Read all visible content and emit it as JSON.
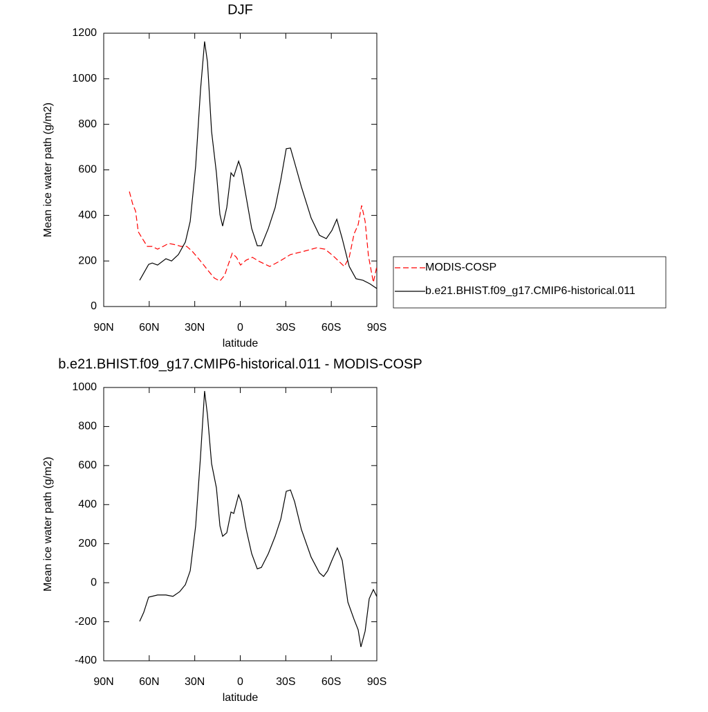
{
  "chart_data": [
    {
      "type": "line",
      "title": "DJF",
      "xlabel": "latitude",
      "ylabel": "Mean ice water path (g/m2)",
      "xlim": [
        90,
        -90
      ],
      "xticks": [
        {
          "value": 90,
          "label": "90N"
        },
        {
          "value": 60,
          "label": "60N"
        },
        {
          "value": 30,
          "label": "30N"
        },
        0,
        {
          "value": -30,
          "label": "30S"
        },
        {
          "value": -60,
          "label": "60S"
        },
        {
          "value": -90,
          "label": "90S"
        }
      ],
      "ylim": [
        0,
        1200
      ],
      "yticks": [
        0,
        200,
        400,
        600,
        800,
        1000,
        1200
      ],
      "legend": "outside-right",
      "series": [
        {
          "name": "MODIS-COSP",
          "color": "#ff0000",
          "dashed": true,
          "x": [
            73.1,
            70.9,
            69,
            67.2,
            64.5,
            61.3,
            58.1,
            54.5,
            50.8,
            47.2,
            42.6,
            39,
            35.3,
            31.7,
            26.2,
            21.6,
            17.1,
            13.4,
            10.3,
            8,
            5.3,
            2.5,
            -0.2,
            -3.9,
            -8,
            -12.5,
            -19.4,
            -26.2,
            -33.1,
            -42.2,
            -50.4,
            -55.8,
            -61.3,
            -68.6,
            -71.8,
            -75,
            -77.7,
            -80,
            -82.3,
            -84.5,
            -87.7,
            -90
          ],
          "values": [
            505,
            450,
            419,
            328,
            298,
            264,
            264,
            252,
            264,
            277,
            271,
            264,
            264,
            243,
            200,
            161,
            125,
            112,
            137,
            182,
            234,
            216,
            182,
            204,
            216,
            198,
            176,
            200,
            228,
            243,
            258,
            252,
            222,
            176,
            216,
            319,
            359,
            444,
            374,
            222,
            106,
            176
          ]
        },
        {
          "name": "b.e21.BHIST.f09_g17.CMIP6-historical.011",
          "color": "#000000",
          "dashed": false,
          "x": [
            66.3,
            60.4,
            58,
            54.5,
            49,
            45.3,
            40.8,
            36.2,
            33,
            29.4,
            26.2,
            23.5,
            21.6,
            18.9,
            15.7,
            13.4,
            11.6,
            8.9,
            6.1,
            4.3,
            1.1,
            -0.7,
            -3.9,
            -7.5,
            -11.2,
            -13.9,
            -18.5,
            -23,
            -26.7,
            -30.3,
            -33.1,
            -35.8,
            -40.3,
            -46.7,
            -52.2,
            -56.7,
            -60.4,
            -63.6,
            -67.2,
            -71.8,
            -76.3,
            -80.9,
            -85.4,
            -90
          ],
          "values": [
            115,
            185,
            191,
            182,
            210,
            200,
            228,
            283,
            374,
            617,
            951,
            1164,
            1073,
            769,
            587,
            404,
            353,
            435,
            587,
            571,
            638,
            602,
            480,
            343,
            267,
            267,
            343,
            435,
            556,
            693,
            696,
            632,
            526,
            389,
            313,
            298,
            334,
            383,
            298,
            176,
            122,
            115,
            100,
            79
          ]
        }
      ]
    },
    {
      "type": "line",
      "title": "b.e21.BHIST.f09_g17.CMIP6-historical.011 - MODIS-COSP",
      "xlabel": "latitude",
      "ylabel": "Mean ice water path (g/m2)",
      "xlim": [
        90,
        -90
      ],
      "xticks": [
        {
          "value": 90,
          "label": "90N"
        },
        {
          "value": 60,
          "label": "60N"
        },
        {
          "value": 30,
          "label": "30N"
        },
        0,
        {
          "value": -30,
          "label": "30S"
        },
        {
          "value": -60,
          "label": "60S"
        },
        {
          "value": -90,
          "label": "90S"
        }
      ],
      "ylim": [
        -400,
        1000
      ],
      "yticks": [
        -400,
        -200,
        0,
        200,
        400,
        600,
        800,
        1000
      ],
      "color": "#000000",
      "x": [
        66.3,
        63.6,
        60.4,
        54.5,
        49,
        44.4,
        39.9,
        36.2,
        33,
        29.4,
        26.2,
        23.5,
        21.6,
        18.9,
        15.7,
        13.4,
        11.6,
        8.9,
        6.1,
        4.3,
        1.1,
        -0.7,
        -3.9,
        -7.5,
        -11.2,
        -13.9,
        -18.5,
        -23,
        -26.7,
        -30.3,
        -33.1,
        -35.8,
        -40.3,
        -46.7,
        -52.2,
        -54.9,
        -57.6,
        -60.4,
        -64,
        -67.2,
        -70.9,
        -75,
        -77.7,
        -79.5,
        -82.3,
        -85,
        -87.7,
        -90
      ],
      "values": [
        -198,
        -152,
        -74,
        -63,
        -63,
        -70,
        -46,
        -10,
        61,
        291,
        646,
        982,
        858,
        610,
        486,
        291,
        238,
        256,
        362,
        355,
        450,
        415,
        273,
        149,
        71,
        78,
        149,
        238,
        326,
        468,
        475,
        415,
        273,
        131,
        50,
        32,
        61,
        114,
        178,
        114,
        -99,
        -188,
        -241,
        -329,
        -248,
        -82,
        -35,
        -71
      ]
    }
  ]
}
